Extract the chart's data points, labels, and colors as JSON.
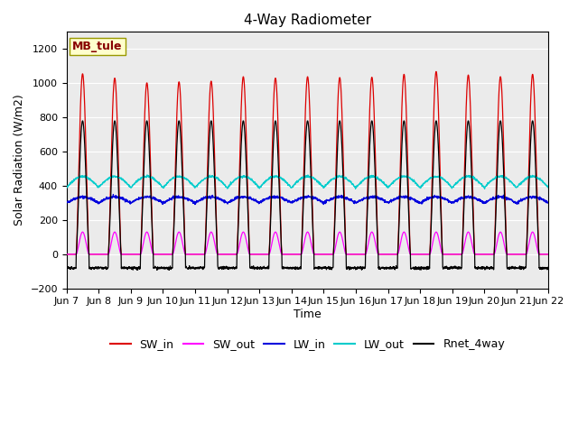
{
  "title": "4-Way Radiometer",
  "xlabel": "Time",
  "ylabel": "Solar Radiation (W/m2)",
  "ylim": [
    -200,
    1300
  ],
  "yticks": [
    -200,
    0,
    200,
    400,
    600,
    800,
    1000,
    1200
  ],
  "station_label": "MB_tule",
  "num_days": 15,
  "points_per_day": 144,
  "colors": {
    "SW_in": "#dd0000",
    "SW_out": "#ff00ff",
    "LW_in": "#0000dd",
    "LW_out": "#00cccc",
    "Rnet_4way": "#000000"
  },
  "legend_labels": [
    "SW_in",
    "SW_out",
    "LW_in",
    "LW_out",
    "Rnet_4way"
  ],
  "xtick_labels": [
    "Jun 7",
    "Jun 8",
    "Jun 9",
    "Jun 10",
    "Jun 11",
    "Jun 12",
    "Jun 13",
    "Jun 14",
    "Jun 15",
    "Jun 16",
    "Jun 17",
    "Jun 18",
    "Jun 19",
    "Jun 20",
    "Jun 21",
    "Jun 22"
  ],
  "background_color": "#ffffff",
  "plot_bg_color": "#ebebeb",
  "grid_color": "#ffffff",
  "station_box_color": "#ffffcc",
  "station_box_edge": "#999900",
  "station_text_color": "#880000",
  "title_fontsize": 11,
  "axis_fontsize": 9,
  "tick_fontsize": 8,
  "legend_fontsize": 9,
  "line_width": 0.9
}
